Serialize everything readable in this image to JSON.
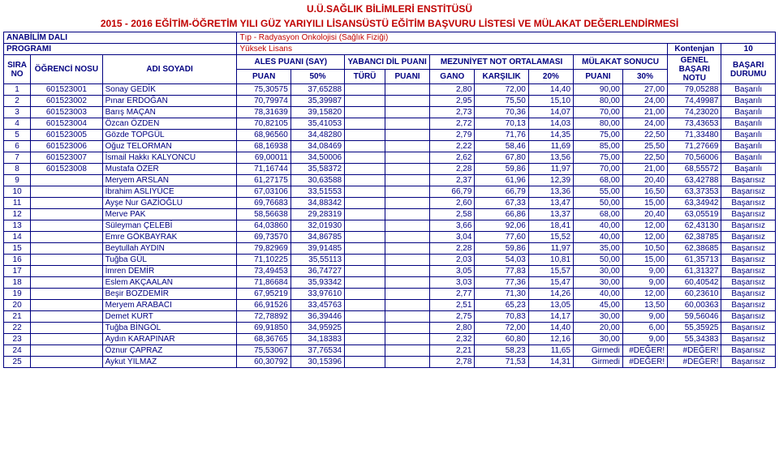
{
  "header": {
    "line1": "U.Ü.SAĞLIK BİLİMLERİ ENSTİTÜSÜ",
    "line2": "2015 - 2016 EĞİTİM-ÖĞRETİM YILI GÜZ YARIYILI  LİSANSÜSTÜ EĞİTİM BAŞVURU LİSTESİ VE MÜLAKAT DEĞERLENDİRMESİ"
  },
  "meta": {
    "anabilim_label": "ANABİLİM DALI",
    "anabilim_value": "Tıp - Radyasyon Onkolojisi (Sağlık Fiziği)",
    "program_label": "PROGRAMI",
    "program_value": "Yüksek Lisans",
    "kontenjan_label": "Kontenjan",
    "kontenjan_value": "10"
  },
  "columns": {
    "sira": "SIRA NO",
    "ogrenci": "ÖĞRENCİ NOSU",
    "adi": "ADI SOYADI",
    "ales": "ALES PUANI  (SAY)",
    "puan": "PUAN",
    "p50": "50%",
    "yabanci": "YABANCI DİL PUANI",
    "turu": "TÜRÜ",
    "ypuani": "PUANI",
    "mezuniyet": "MEZUNİYET NOT ORTALAMASI",
    "gano": "GANO",
    "karsilik": "KARŞILIK",
    "p20": "20%",
    "mulakat": "MÜLAKAT SONUCU",
    "mpuani": "PUANI",
    "p30": "30%",
    "genel": "GENEL BAŞARI NOTU",
    "durum": "BAŞARI DURUMU"
  },
  "rows": [
    {
      "sira": "1",
      "ogr": "601523001",
      "adi": "Sonay GEDİK",
      "puan": "75,30575",
      "p50": "37,65288",
      "turu": "",
      "ypuani": "",
      "gano": "2,80",
      "kars": "72,00",
      "p20": "14,40",
      "mpuani": "90,00",
      "p30": "27,00",
      "genel": "79,05288",
      "durum": "Başarılı"
    },
    {
      "sira": "2",
      "ogr": "601523002",
      "adi": "Pınar ERDOĞAN",
      "puan": "70,79974",
      "p50": "35,39987",
      "turu": "",
      "ypuani": "",
      "gano": "2,95",
      "kars": "75,50",
      "p20": "15,10",
      "mpuani": "80,00",
      "p30": "24,00",
      "genel": "74,49987",
      "durum": "Başarılı"
    },
    {
      "sira": "3",
      "ogr": "601523003",
      "adi": "Barış MAÇAN",
      "puan": "78,31639",
      "p50": "39,15820",
      "turu": "",
      "ypuani": "",
      "gano": "2,73",
      "kars": "70,36",
      "p20": "14,07",
      "mpuani": "70,00",
      "p30": "21,00",
      "genel": "74,23020",
      "durum": "Başarılı"
    },
    {
      "sira": "4",
      "ogr": "601523004",
      "adi": "Özcan ÖZDEN",
      "puan": "70,82105",
      "p50": "35,41053",
      "turu": "",
      "ypuani": "",
      "gano": "2,72",
      "kars": "70,13",
      "p20": "14,03",
      "mpuani": "80,00",
      "p30": "24,00",
      "genel": "73,43653",
      "durum": "Başarılı"
    },
    {
      "sira": "5",
      "ogr": "601523005",
      "adi": "Gözde TOPGÜL",
      "puan": "68,96560",
      "p50": "34,48280",
      "turu": "",
      "ypuani": "",
      "gano": "2,79",
      "kars": "71,76",
      "p20": "14,35",
      "mpuani": "75,00",
      "p30": "22,50",
      "genel": "71,33480",
      "durum": "Başarılı"
    },
    {
      "sira": "6",
      "ogr": "601523006",
      "adi": "Oğuz TELORMAN",
      "puan": "68,16938",
      "p50": "34,08469",
      "turu": "",
      "ypuani": "",
      "gano": "2,22",
      "kars": "58,46",
      "p20": "11,69",
      "mpuani": "85,00",
      "p30": "25,50",
      "genel": "71,27669",
      "durum": "Başarılı"
    },
    {
      "sira": "7",
      "ogr": "601523007",
      "adi": "İsmail Hakkı KALYONCU",
      "puan": "69,00011",
      "p50": "34,50006",
      "turu": "",
      "ypuani": "",
      "gano": "2,62",
      "kars": "67,80",
      "p20": "13,56",
      "mpuani": "75,00",
      "p30": "22,50",
      "genel": "70,56006",
      "durum": "Başarılı"
    },
    {
      "sira": "8",
      "ogr": "601523008",
      "adi": "Mustafa ÖZER",
      "puan": "71,16744",
      "p50": "35,58372",
      "turu": "",
      "ypuani": "",
      "gano": "2,28",
      "kars": "59,86",
      "p20": "11,97",
      "mpuani": "70,00",
      "p30": "21,00",
      "genel": "68,55572",
      "durum": "Başarılı"
    },
    {
      "sira": "9",
      "ogr": "",
      "adi": "Meryem ARSLAN",
      "puan": "61,27175",
      "p50": "30,63588",
      "turu": "",
      "ypuani": "",
      "gano": "2,37",
      "kars": "61,96",
      "p20": "12,39",
      "mpuani": "68,00",
      "p30": "20,40",
      "genel": "63,42788",
      "durum": "Başarısız"
    },
    {
      "sira": "10",
      "ogr": "",
      "adi": "İbrahim ASLIYÜCE",
      "puan": "67,03106",
      "p50": "33,51553",
      "turu": "",
      "ypuani": "",
      "gano": "66,79",
      "kars": "66,79",
      "p20": "13,36",
      "mpuani": "55,00",
      "p30": "16,50",
      "genel": "63,37353",
      "durum": "Başarısız"
    },
    {
      "sira": "11",
      "ogr": "",
      "adi": "Ayşe Nur GAZİOĞLU",
      "puan": "69,76683",
      "p50": "34,88342",
      "turu": "",
      "ypuani": "",
      "gano": "2,60",
      "kars": "67,33",
      "p20": "13,47",
      "mpuani": "50,00",
      "p30": "15,00",
      "genel": "63,34942",
      "durum": "Başarısız"
    },
    {
      "sira": "12",
      "ogr": "",
      "adi": "Merve PAK",
      "puan": "58,56638",
      "p50": "29,28319",
      "turu": "",
      "ypuani": "",
      "gano": "2,58",
      "kars": "66,86",
      "p20": "13,37",
      "mpuani": "68,00",
      "p30": "20,40",
      "genel": "63,05519",
      "durum": "Başarısız"
    },
    {
      "sira": "13",
      "ogr": "",
      "adi": "Süleyman ÇELEBİ",
      "puan": "64,03860",
      "p50": "32,01930",
      "turu": "",
      "ypuani": "",
      "gano": "3,66",
      "kars": "92,06",
      "p20": "18,41",
      "mpuani": "40,00",
      "p30": "12,00",
      "genel": "62,43130",
      "durum": "Başarısız"
    },
    {
      "sira": "14",
      "ogr": "",
      "adi": "Emre GÖKBAYRAK",
      "puan": "69,73570",
      "p50": "34,86785",
      "turu": "",
      "ypuani": "",
      "gano": "3,04",
      "kars": "77,60",
      "p20": "15,52",
      "mpuani": "40,00",
      "p30": "12,00",
      "genel": "62,38785",
      "durum": "Başarısız"
    },
    {
      "sira": "15",
      "ogr": "",
      "adi": "Beytullah AYDIN",
      "puan": "79,82969",
      "p50": "39,91485",
      "turu": "",
      "ypuani": "",
      "gano": "2,28",
      "kars": "59,86",
      "p20": "11,97",
      "mpuani": "35,00",
      "p30": "10,50",
      "genel": "62,38685",
      "durum": "Başarısız"
    },
    {
      "sira": "16",
      "ogr": "",
      "adi": "Tuğba GÜL",
      "puan": "71,10225",
      "p50": "35,55113",
      "turu": "",
      "ypuani": "",
      "gano": "2,03",
      "kars": "54,03",
      "p20": "10,81",
      "mpuani": "50,00",
      "p30": "15,00",
      "genel": "61,35713",
      "durum": "Başarısız"
    },
    {
      "sira": "17",
      "ogr": "",
      "adi": "İmren DEMİR",
      "puan": "73,49453",
      "p50": "36,74727",
      "turu": "",
      "ypuani": "",
      "gano": "3,05",
      "kars": "77,83",
      "p20": "15,57",
      "mpuani": "30,00",
      "p30": "9,00",
      "genel": "61,31327",
      "durum": "Başarısız"
    },
    {
      "sira": "18",
      "ogr": "",
      "adi": "Eslem AKÇAALAN",
      "puan": "71,86684",
      "p50": "35,93342",
      "turu": "",
      "ypuani": "",
      "gano": "3,03",
      "kars": "77,36",
      "p20": "15,47",
      "mpuani": "30,00",
      "p30": "9,00",
      "genel": "60,40542",
      "durum": "Başarısız"
    },
    {
      "sira": "19",
      "ogr": "",
      "adi": "Beşir BOZDEMİR",
      "puan": "67,95219",
      "p50": "33,97610",
      "turu": "",
      "ypuani": "",
      "gano": "2,77",
      "kars": "71,30",
      "p20": "14,26",
      "mpuani": "40,00",
      "p30": "12,00",
      "genel": "60,23610",
      "durum": "Başarısız"
    },
    {
      "sira": "20",
      "ogr": "",
      "adi": "Meryem ARABACI",
      "puan": "66,91526",
      "p50": "33,45763",
      "turu": "",
      "ypuani": "",
      "gano": "2,51",
      "kars": "65,23",
      "p20": "13,05",
      "mpuani": "45,00",
      "p30": "13,50",
      "genel": "60,00363",
      "durum": "Başarısız"
    },
    {
      "sira": "21",
      "ogr": "",
      "adi": "Demet KURT",
      "puan": "72,78892",
      "p50": "36,39446",
      "turu": "",
      "ypuani": "",
      "gano": "2,75",
      "kars": "70,83",
      "p20": "14,17",
      "mpuani": "30,00",
      "p30": "9,00",
      "genel": "59,56046",
      "durum": "Başarısız"
    },
    {
      "sira": "22",
      "ogr": "",
      "adi": "Tuğba BİNGÖL",
      "puan": "69,91850",
      "p50": "34,95925",
      "turu": "",
      "ypuani": "",
      "gano": "2,80",
      "kars": "72,00",
      "p20": "14,40",
      "mpuani": "20,00",
      "p30": "6,00",
      "genel": "55,35925",
      "durum": "Başarısız"
    },
    {
      "sira": "23",
      "ogr": "",
      "adi": "Aydın KARAPINAR",
      "puan": "68,36765",
      "p50": "34,18383",
      "turu": "",
      "ypuani": "",
      "gano": "2,32",
      "kars": "60,80",
      "p20": "12,16",
      "mpuani": "30,00",
      "p30": "9,00",
      "genel": "55,34383",
      "durum": "Başarısız"
    },
    {
      "sira": "24",
      "ogr": "",
      "adi": "Öznur ÇAPRAZ",
      "puan": "75,53067",
      "p50": "37,76534",
      "turu": "",
      "ypuani": "",
      "gano": "2,21",
      "kars": "58,23",
      "p20": "11,65",
      "mpuani": "Girmedi",
      "p30": "#DEĞER!",
      "genel": "#DEĞER!",
      "durum": "Başarısız"
    },
    {
      "sira": "25",
      "ogr": "",
      "adi": "Aykut YILMAZ",
      "puan": "60,30792",
      "p50": "30,15396",
      "turu": "",
      "ypuani": "",
      "gano": "2,78",
      "kars": "71,53",
      "p20": "14,31",
      "mpuani": "Girmedi",
      "p30": "#DEĞER!",
      "genel": "#DEĞER!",
      "durum": "Başarısız"
    }
  ]
}
